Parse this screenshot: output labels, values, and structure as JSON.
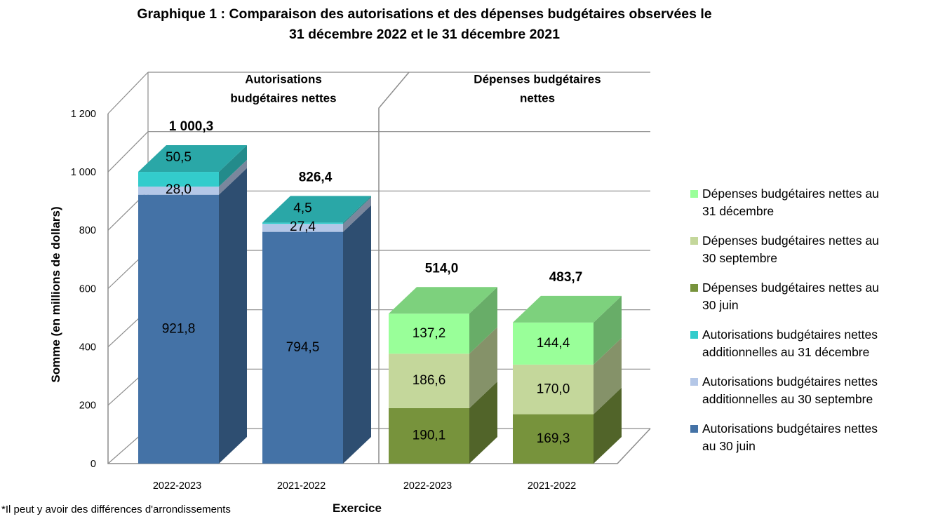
{
  "title": {
    "line1": "Graphique 1 : Comparaison des autorisations et des dépenses budgétaires observées le",
    "line2": "31 décembre 2022 et le 31 décembre 2021"
  },
  "chart_data": {
    "type": "bar",
    "stacked": true,
    "three_d": true,
    "title": "Graphique 1 : Comparaison des autorisations et des dépenses budgétaires observées le 31 décembre 2022 et le 31 décembre 2021",
    "xlabel": "Exercice",
    "ylabel": "Somme (en millions de dollars)",
    "ylim": [
      0,
      1200
    ],
    "yticks": [
      0,
      200,
      400,
      600,
      800,
      1000,
      1200
    ],
    "ytick_labels": [
      "0",
      "200",
      "400",
      "600",
      "800",
      "1 000",
      "1 200"
    ],
    "grid": true,
    "legend_position": "right",
    "groups": [
      {
        "label_line1": "Autorisations",
        "label_line2": "budgétaires nettes"
      },
      {
        "label_line1": "Dépenses budgétaires",
        "label_line2": "nettes"
      }
    ],
    "categories": [
      "2022-2023",
      "2021-2022",
      "2022-2023",
      "2021-2022"
    ],
    "series": [
      {
        "name": "Autorisations budgétaires nettes au 30 juin",
        "color": "#4472A6",
        "values": [
          921.8,
          794.5,
          null,
          null
        ],
        "labels": [
          "921,8",
          "794,5",
          "",
          ""
        ]
      },
      {
        "name": "Autorisations budgétaires nettes additionnelles au 30 septembre",
        "color": "#B4C7E7",
        "values": [
          28.0,
          27.4,
          null,
          null
        ],
        "labels": [
          "28,0",
          "27,4",
          "",
          ""
        ]
      },
      {
        "name": "Autorisations budgétaires nettes additionnelles au 31 décembre",
        "color": "#33CCCC",
        "values": [
          50.5,
          4.5,
          null,
          null
        ],
        "labels": [
          "50,5",
          "4,5",
          "",
          ""
        ]
      },
      {
        "name": "Dépenses budgétaires nettes au 30 juin",
        "color": "#77933C",
        "values": [
          null,
          null,
          190.1,
          169.3
        ],
        "labels": [
          "",
          "",
          "190,1",
          "169,3"
        ]
      },
      {
        "name": "Dépenses budgétaires nettes au 30 septembre",
        "color": "#C4D79B",
        "values": [
          null,
          null,
          186.6,
          170.0
        ],
        "labels": [
          "",
          "",
          "186,6",
          "170,0"
        ]
      },
      {
        "name": "Dépenses budgétaires nettes au 31 décembre",
        "color": "#99FF99",
        "values": [
          null,
          null,
          137.2,
          144.4
        ],
        "labels": [
          "",
          "",
          "137,2",
          "144,4"
        ]
      }
    ],
    "totals": [
      1000.3,
      826.4,
      514.0,
      483.7
    ],
    "total_labels": [
      "1 000,3",
      "826,4",
      "514,0",
      "483,7"
    ]
  },
  "legend": {
    "items": [
      {
        "line1": "Dépenses budgétaires nettes au",
        "line2": "31 décembre",
        "color": "#99FF99"
      },
      {
        "line1": "Dépenses budgétaires nettes au",
        "line2": "30 septembre",
        "color": "#C4D79B"
      },
      {
        "line1": "Dépenses budgétaires nettes au",
        "line2": "30 juin",
        "color": "#77933C"
      },
      {
        "line1": "Autorisations budgétaires nettes",
        "line2": "additionnelles au 31 décembre",
        "color": "#33CCCC"
      },
      {
        "line1": "Autorisations budgétaires nettes",
        "line2": "additionnelles au 30 septembre",
        "color": "#B4C7E7"
      },
      {
        "line1": "Autorisations budgétaires nettes",
        "line2": "au 30 juin",
        "color": "#4472A6"
      }
    ]
  },
  "footnote": "*Il peut y avoir des différences d'arrondissements"
}
